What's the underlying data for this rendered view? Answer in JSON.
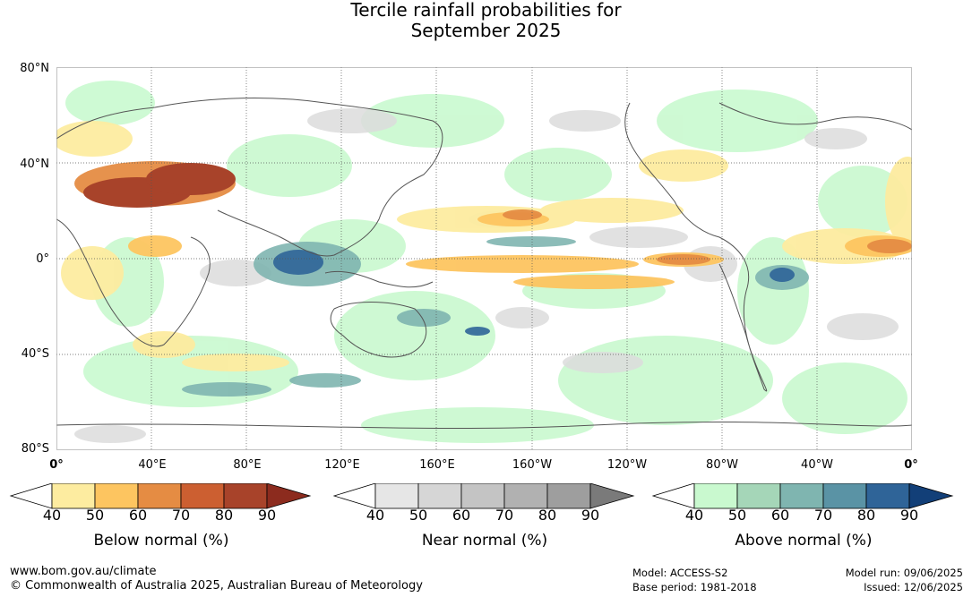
{
  "title": {
    "line1": "Tercile rainfall probabilities for",
    "line2": "September 2025"
  },
  "map": {
    "lat_labels": [
      "80°N",
      "40°N",
      "0°",
      "40°S",
      "80°S"
    ],
    "lon_labels": [
      "0°",
      "40°E",
      "80°E",
      "120°E",
      "160°E",
      "160°W",
      "120°W",
      "80°W",
      "40°W",
      "0°"
    ]
  },
  "legends": [
    {
      "title": "Below normal (%)",
      "ticks": [
        "40",
        "50",
        "60",
        "70",
        "80",
        "90"
      ],
      "colors": [
        "#ffffff",
        "#fdeca0",
        "#fdc560",
        "#e58c43",
        "#cc5f31",
        "#a8432a",
        "#8c2b1e"
      ]
    },
    {
      "title": "Near normal (%)",
      "ticks": [
        "40",
        "50",
        "60",
        "70",
        "80",
        "90"
      ],
      "colors": [
        "#ffffff",
        "#e6e6e6",
        "#d6d6d6",
        "#c4c4c4",
        "#b1b1b1",
        "#9e9e9e",
        "#7a7a7a"
      ]
    },
    {
      "title": "Above normal (%)",
      "ticks": [
        "40",
        "50",
        "60",
        "70",
        "80",
        "90"
      ],
      "colors": [
        "#ffffff",
        "#c9f9cf",
        "#a5d6b8",
        "#7fb5b0",
        "#5a93a5",
        "#2f6498",
        "#123f78"
      ]
    }
  ],
  "footer": {
    "website": "www.bom.gov.au/climate",
    "copyright": "© Commonwealth of Australia 2025, Australian Bureau of Meteorology",
    "model": "Model: ACCESS-S2",
    "base_period": "Base period: 1981-2018",
    "model_run": "Model run: 09/06/2025",
    "issued": "Issued: 12/06/2025"
  }
}
